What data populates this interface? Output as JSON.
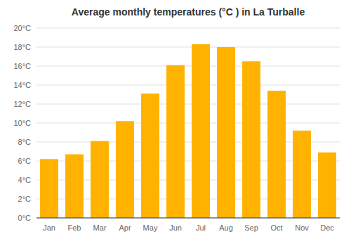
{
  "chart_data": {
    "type": "bar",
    "title": "Average monthly temperatures (°C ) in La Turballe",
    "categories": [
      "Jan",
      "Feb",
      "Mar",
      "Apr",
      "May",
      "Jun",
      "Jul",
      "Aug",
      "Sep",
      "Oct",
      "Nov",
      "Dec"
    ],
    "values": [
      6.2,
      6.7,
      8.1,
      10.2,
      13.1,
      16.1,
      18.3,
      18.0,
      16.5,
      13.4,
      9.2,
      6.9
    ],
    "color": "#FFB300",
    "ylim": [
      0,
      20
    ],
    "yticks": [
      {
        "value": 0,
        "label": "0°C"
      },
      {
        "value": 2,
        "label": "2°C"
      },
      {
        "value": 4,
        "label": "4°C"
      },
      {
        "value": 6,
        "label": "6°C"
      },
      {
        "value": 8,
        "label": "8°C"
      },
      {
        "value": 10,
        "label": "10°C"
      },
      {
        "value": 12,
        "label": "12°C"
      },
      {
        "value": 14,
        "label": "14°C"
      },
      {
        "value": 16,
        "label": "16°C"
      },
      {
        "value": 18,
        "label": "18°C"
      },
      {
        "value": 20,
        "label": "20°C"
      }
    ],
    "grid": true
  }
}
